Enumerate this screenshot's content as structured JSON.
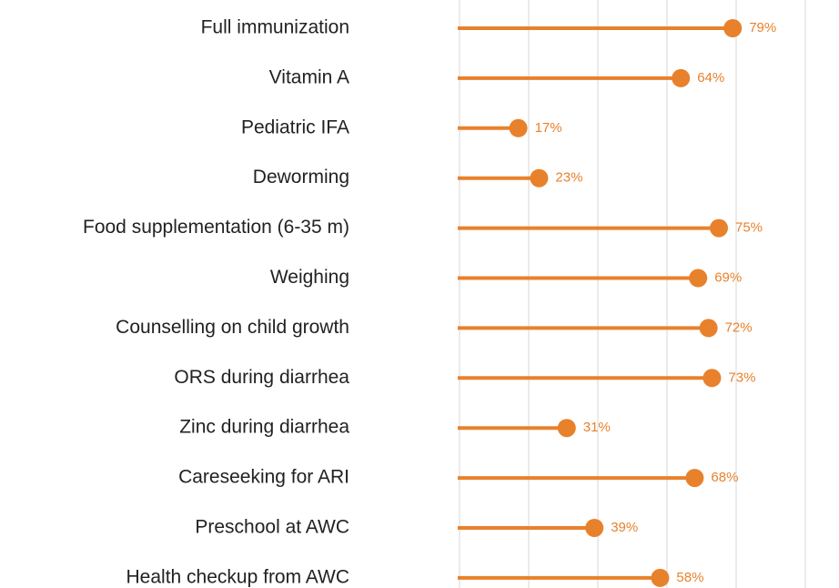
{
  "chart_data": {
    "type": "lollipop",
    "categories": [
      "Full immunization",
      "Vitamin A",
      "Pediatric IFA",
      "Deworming",
      "Food supplementation (6-35 m)",
      "Weighing",
      "Counselling on child growth",
      "ORS during diarrhea",
      "Zinc during diarrhea",
      "Careseeking for ARI",
      "Preschool at AWC",
      "Health checkup from AWC"
    ],
    "values": [
      79,
      64,
      17,
      23,
      75,
      69,
      72,
      73,
      31,
      68,
      39,
      58
    ],
    "value_labels": [
      "79%",
      "64%",
      "17%",
      "23%",
      "75%",
      "69%",
      "72%",
      "73%",
      "31%",
      "68%",
      "39%",
      "58%"
    ],
    "color": "#e8812c",
    "xlim": [
      0,
      100
    ],
    "xticks": [
      0,
      20,
      40,
      60,
      80,
      100
    ],
    "grid": true
  }
}
